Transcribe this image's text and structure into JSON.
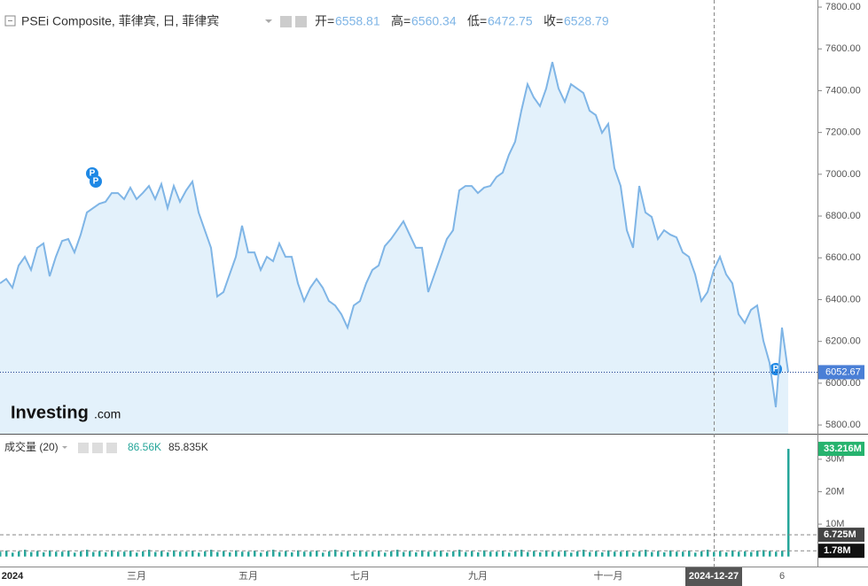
{
  "chart_data": [
    {
      "type": "area",
      "title": "PSEi Composite, 菲律宾, 日, 菲律宾",
      "color": "#7fb5e6",
      "ohlc": [
        {
          "label": "开=",
          "value": "6558.81"
        },
        {
          "label": "高=",
          "value": "6560.34"
        },
        {
          "label": "低=",
          "value": "6472.75"
        },
        {
          "label": "收=",
          "value": "6528.79"
        }
      ],
      "logo": "Investing",
      "logo_suffix": ".com",
      "markers": [
        "P",
        "P",
        "P"
      ],
      "categories": [
        null,
        null,
        "2024",
        null,
        null,
        null,
        null,
        null,
        null,
        null,
        null,
        null,
        null,
        null,
        null,
        null,
        null,
        null,
        null,
        null,
        null,
        null,
        "三月",
        null,
        null,
        null,
        null,
        null,
        null,
        null,
        null,
        null,
        null,
        null,
        null,
        null,
        null,
        null,
        null,
        null,
        "五月",
        null,
        null,
        null,
        null,
        null,
        null,
        null,
        null,
        null,
        null,
        null,
        null,
        null,
        null,
        null,
        null,
        null,
        "七月",
        null,
        null,
        null,
        null,
        null,
        null,
        null,
        null,
        null,
        null,
        null,
        null,
        null,
        null,
        null,
        null,
        null,
        null,
        "九月",
        null,
        null,
        null,
        null,
        null,
        null,
        null,
        null,
        null,
        null,
        null,
        null,
        null,
        null,
        null,
        null,
        null,
        null,
        null,
        null,
        "十一月",
        null,
        null,
        null,
        null,
        null,
        null,
        null,
        null,
        null,
        null,
        null,
        null,
        null,
        null,
        null,
        null,
        "2024-12-27",
        null,
        null,
        null,
        null,
        null,
        null,
        null,
        null,
        null,
        null,
        "6",
        null
      ],
      "values": [
        6478,
        6499,
        6457,
        6563,
        6605,
        6542,
        6648,
        6669,
        6512,
        6605,
        6681,
        6690,
        6626,
        6711,
        6817,
        6838,
        6859,
        6868,
        6910,
        6910,
        6881,
        6936,
        6881,
        6910,
        6944,
        6881,
        6953,
        6838,
        6944,
        6868,
        6923,
        6965,
        6817,
        6732,
        6648,
        6415,
        6436,
        6521,
        6605,
        6754,
        6626,
        6626,
        6542,
        6605,
        6584,
        6669,
        6605,
        6605,
        6478,
        6393,
        6457,
        6499,
        6457,
        6393,
        6372,
        6330,
        6266,
        6372,
        6393,
        6478,
        6542,
        6563,
        6656,
        6690,
        6732,
        6775,
        6711,
        6648,
        6648,
        6436,
        6521,
        6605,
        6690,
        6732,
        6923,
        6944,
        6944,
        6910,
        6936,
        6944,
        6987,
        7008,
        7093,
        7156,
        7304,
        7431,
        7368,
        7326,
        7410,
        7537,
        7410,
        7347,
        7431,
        7410,
        7389,
        7304,
        7283,
        7198,
        7241,
        7029,
        6944,
        6732,
        6648,
        6944,
        6817,
        6796,
        6690,
        6732,
        6711,
        6698,
        6626,
        6605,
        6521,
        6393,
        6436,
        6542,
        6605,
        6521,
        6478,
        6330,
        6288,
        6351,
        6372,
        6203,
        6097,
        5885,
        6266,
        6052.67
      ],
      "ylim": [
        5758,
        7834
      ],
      "yticks": [
        {
          "value": 7800,
          "label": "7800.00"
        },
        {
          "value": 7600,
          "label": "7600.00"
        },
        {
          "value": 7400,
          "label": "7400.00"
        },
        {
          "value": 7200,
          "label": "7200.00"
        },
        {
          "value": 7000,
          "label": "7000.00"
        },
        {
          "value": 6800,
          "label": "6800.00"
        },
        {
          "value": 6600,
          "label": "6600.00"
        },
        {
          "value": 6400,
          "label": "6400.00"
        },
        {
          "value": 6200,
          "label": "6200.00"
        },
        {
          "value": 6000,
          "label": "6000.00"
        },
        {
          "value": 5800,
          "label": "5800.00"
        }
      ]
    },
    {
      "type": "bar",
      "title": "成交量 (20)",
      "legend_values": [
        "86.56K",
        "85.835K"
      ],
      "color": "#26a69a",
      "values": [
        1.5,
        1.8,
        1.2,
        1.6,
        2.1,
        1.4,
        1.7,
        1.3,
        1.9,
        1.5,
        1.5,
        1.8,
        1.2,
        1.6,
        2.1,
        1.4,
        1.7,
        1.3,
        1.9,
        1.5,
        1.5,
        1.8,
        1.2,
        1.6,
        2.1,
        1.4,
        1.7,
        1.3,
        1.9,
        1.5,
        1.5,
        1.8,
        1.2,
        1.6,
        2.1,
        1.4,
        1.7,
        1.3,
        1.9,
        1.5,
        1.5,
        1.8,
        1.2,
        1.6,
        2.1,
        1.4,
        1.7,
        1.3,
        1.9,
        1.5,
        1.5,
        1.8,
        1.2,
        1.6,
        2.1,
        1.4,
        1.7,
        1.3,
        1.9,
        1.5,
        1.5,
        1.8,
        1.2,
        1.6,
        2.1,
        1.4,
        1.7,
        1.3,
        1.9,
        1.5,
        1.5,
        1.8,
        1.2,
        1.6,
        2.1,
        1.4,
        1.7,
        1.3,
        1.9,
        1.5,
        1.5,
        1.8,
        1.2,
        1.6,
        2.1,
        1.4,
        1.7,
        1.3,
        1.9,
        1.5,
        1.5,
        1.8,
        1.2,
        1.6,
        2.1,
        1.4,
        1.7,
        1.3,
        1.9,
        1.5,
        1.5,
        1.8,
        1.2,
        1.6,
        2.1,
        1.4,
        1.7,
        1.3,
        1.9,
        1.5,
        1.5,
        1.8,
        1.2,
        1.6,
        2.1,
        1.4,
        1.7,
        1.3,
        1.9,
        1.5,
        1.6,
        1.4,
        1.8,
        2.0,
        1.7,
        1.5,
        1.78,
        33.216
      ],
      "ylim": [
        -3.08,
        37.6
      ],
      "yticks": [
        {
          "value": 30,
          "label": "30M"
        },
        {
          "value": 20,
          "label": "20M"
        },
        {
          "value": 10,
          "label": "10M"
        }
      ],
      "ref_lines": [
        {
          "value": 33.216,
          "label": "33.216M",
          "color": "#26b36e"
        },
        {
          "value": 6.725,
          "label": "6.725M",
          "color": "#444444"
        },
        {
          "value": 1.78,
          "label": "1.78M",
          "color": "#111111"
        }
      ]
    }
  ]
}
